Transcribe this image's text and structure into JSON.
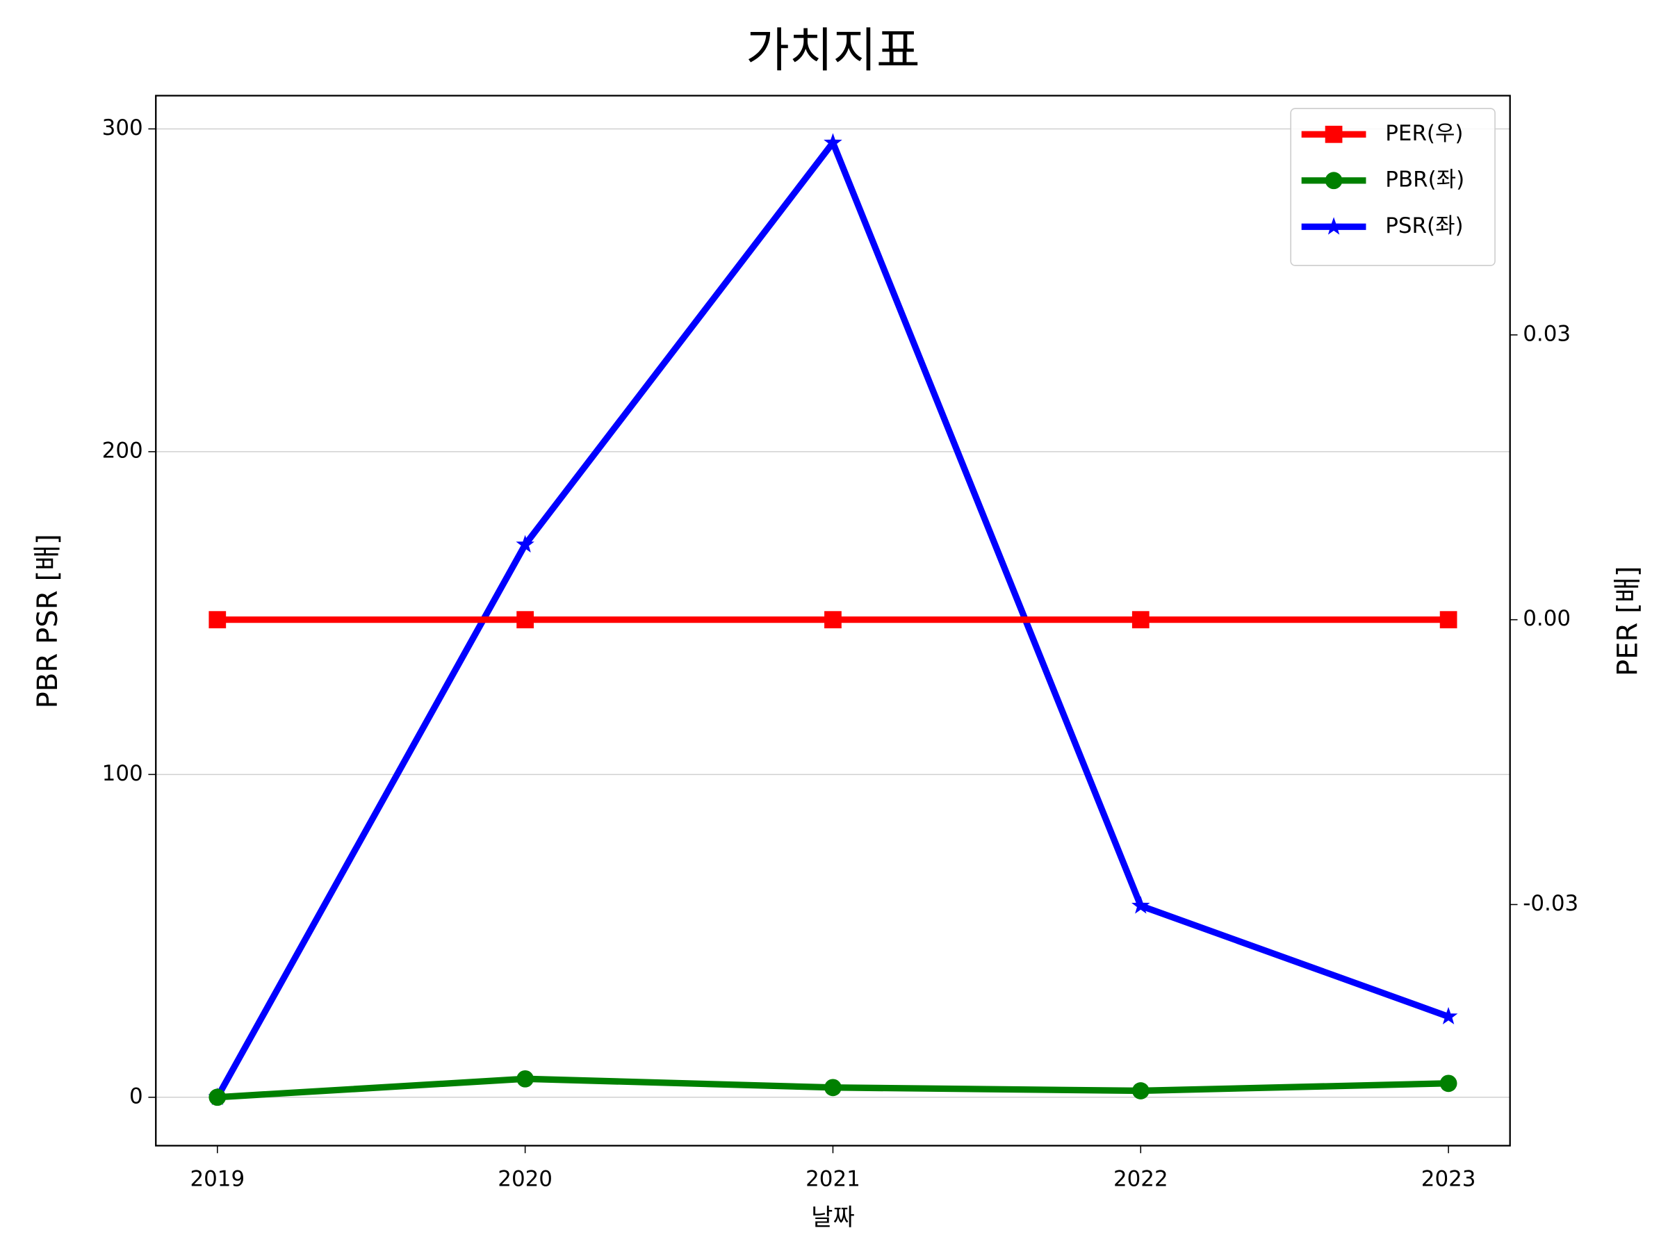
{
  "chart_data": {
    "type": "line",
    "title": "가치지표",
    "x_label": "날짜",
    "y_label": "PBR PSR [배]",
    "y2_label": "PER [배]",
    "y_label_color": "#008000",
    "y2_label_color": "#ff0000",
    "categories": [
      "2019",
      "2020",
      "2021",
      "2022",
      "2023"
    ],
    "series": [
      {
        "name": "PER(우)",
        "color": "#ff0000",
        "marker": "square",
        "axis": "y2",
        "values": [
          0,
          0,
          0,
          0,
          0
        ]
      },
      {
        "name": "PBR(좌)",
        "color": "#008000",
        "marker": "circle",
        "values": [
          0,
          5.7,
          3.0,
          2.0,
          4.3
        ]
      },
      {
        "name": "PSR(좌)",
        "color": "#0000ff",
        "marker": "star",
        "values": [
          0,
          171.2,
          295.7,
          59.3,
          25
        ]
      }
    ],
    "ylim": [
      -15,
      310.3
    ],
    "yticks": [
      0,
      100,
      200,
      300
    ],
    "y2lim": [
      -0.0554,
      0.0552
    ],
    "y2ticks": [
      -0.03,
      {
        "value": 0,
        "label": "0.00"
      },
      0.03
    ],
    "grid": true,
    "legend": "upper right"
  }
}
